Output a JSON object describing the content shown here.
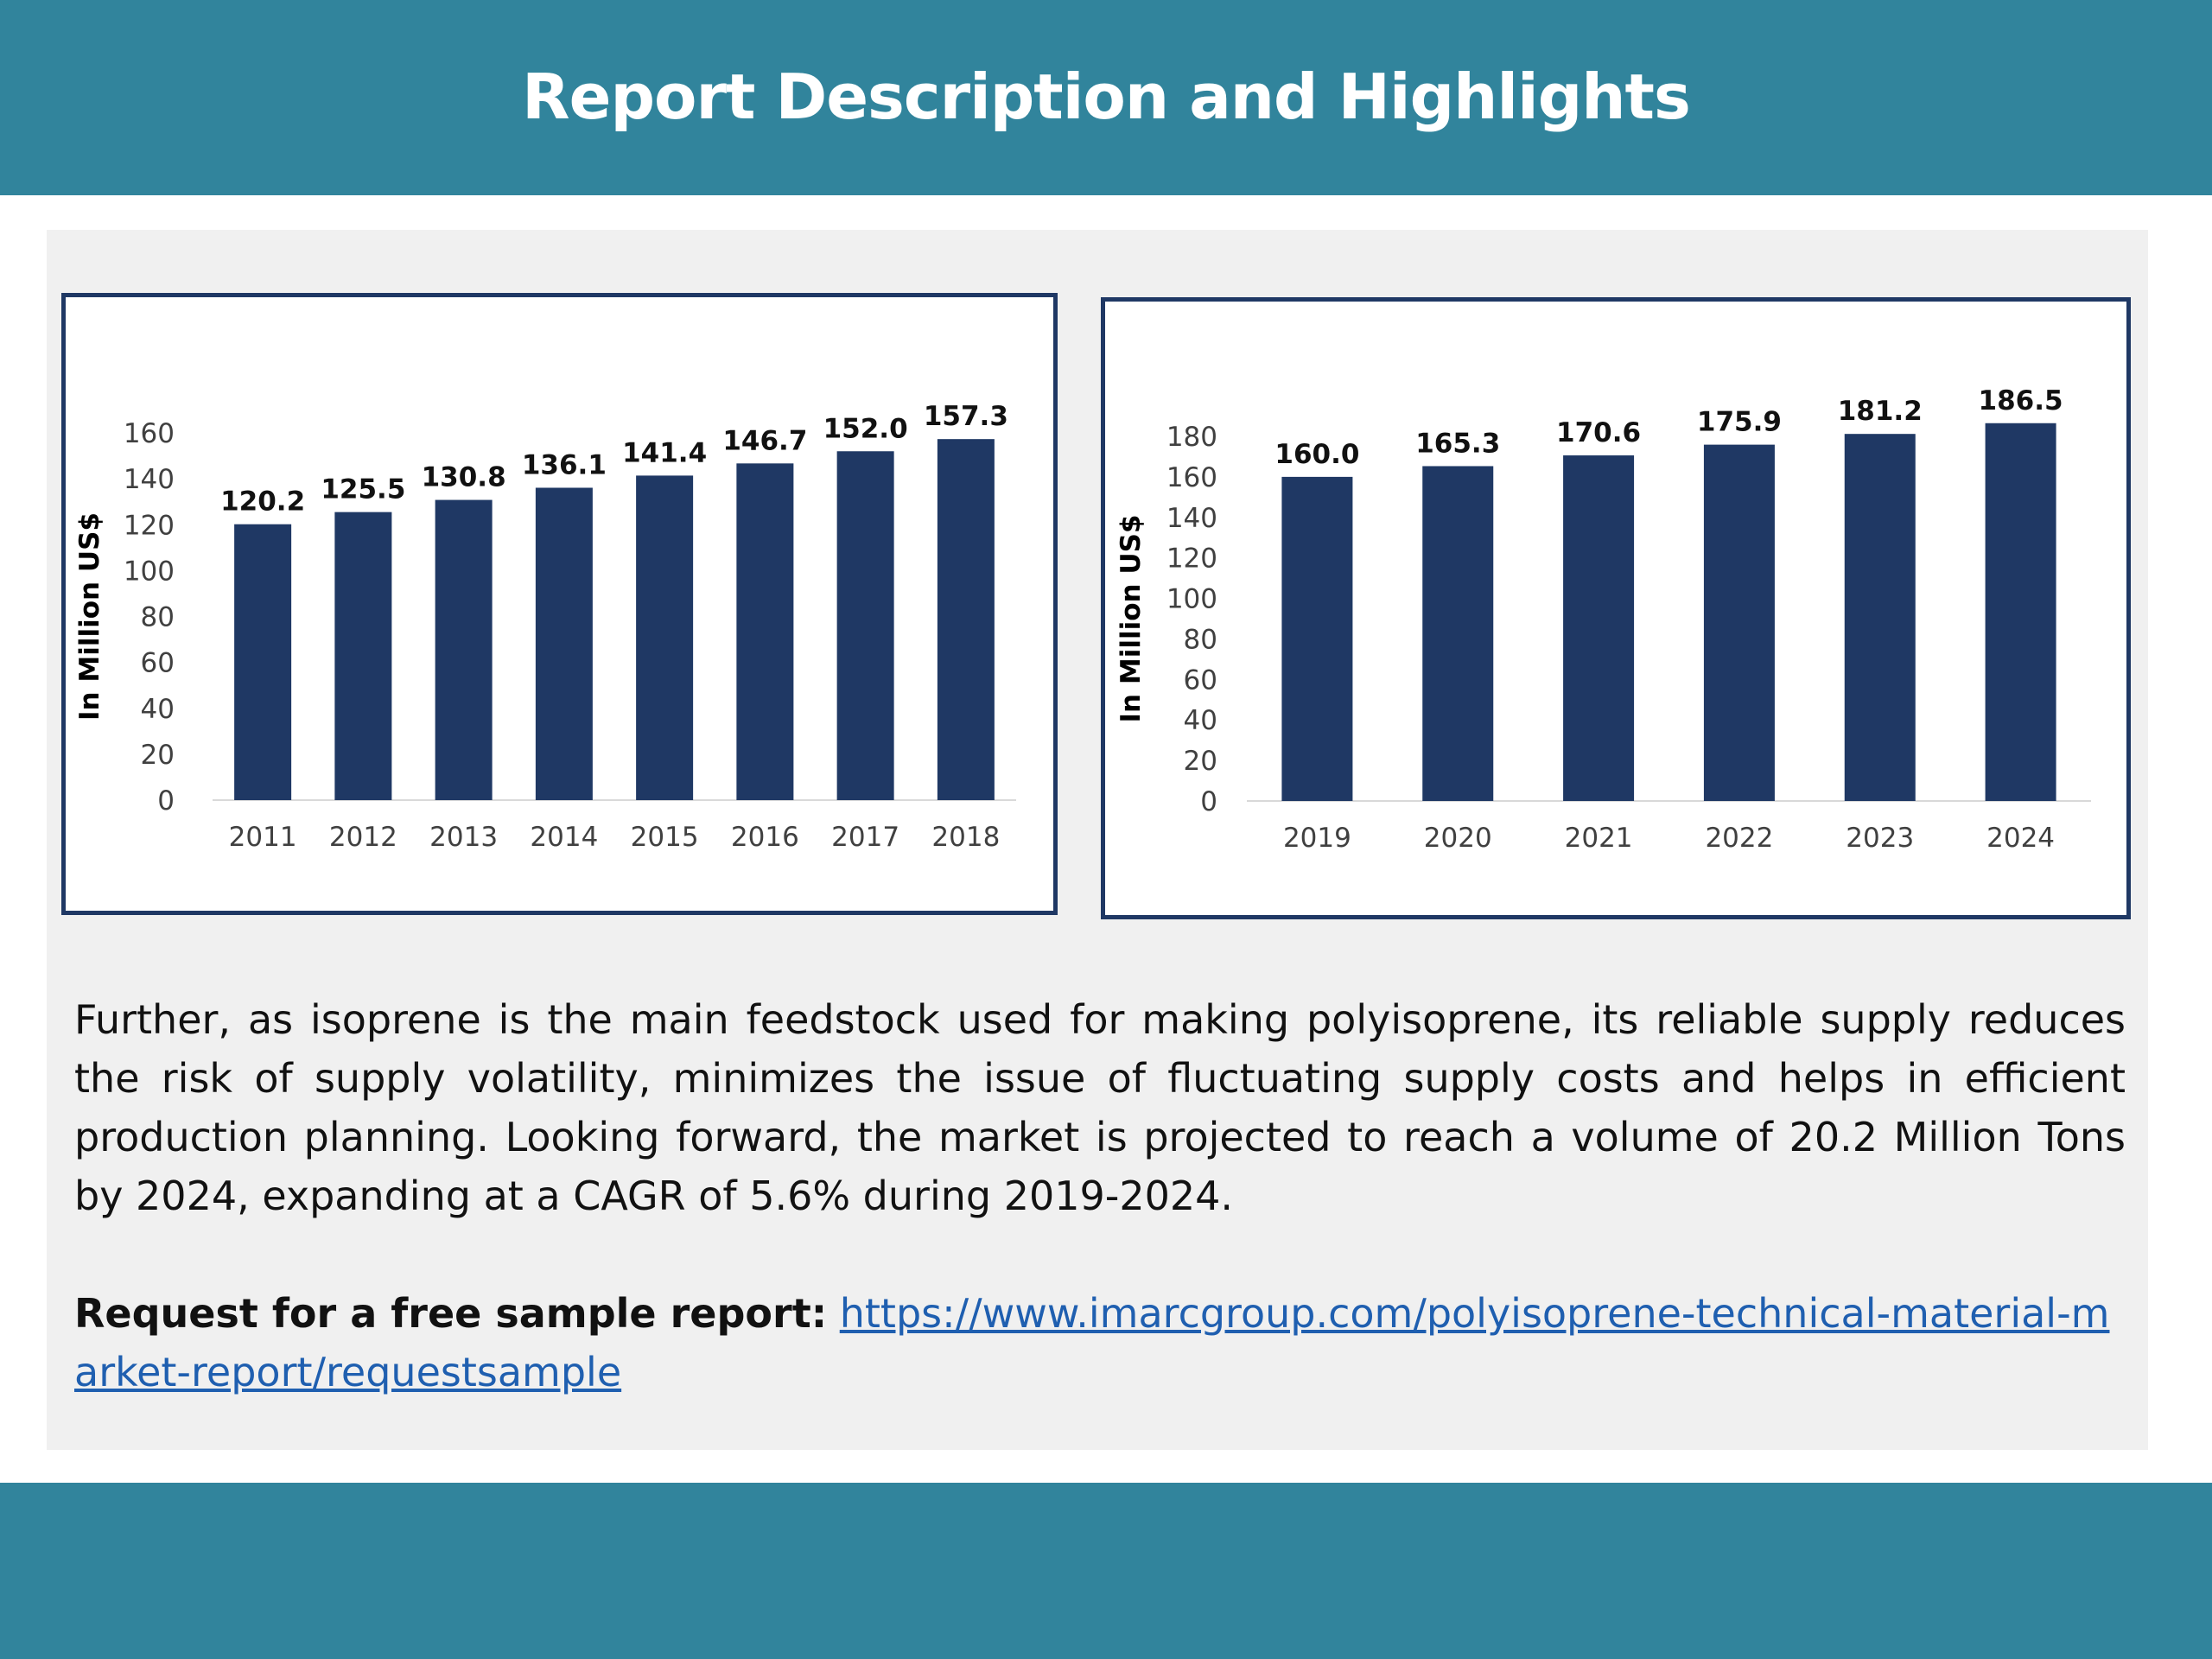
{
  "header": {
    "title": "Report Description and Highlights"
  },
  "colors": {
    "band": "#31849c",
    "panel": "#f0f0f0",
    "bar": "#1f3864",
    "link": "#1f5fb0"
  },
  "chart_data": [
    {
      "type": "bar",
      "title": "",
      "xlabel": "",
      "ylabel": "In Million US$",
      "categories": [
        "2011",
        "2012",
        "2013",
        "2014",
        "2015",
        "2016",
        "2017",
        "2018"
      ],
      "values": [
        120.2,
        125.5,
        130.8,
        136.1,
        141.4,
        146.7,
        152.0,
        157.3
      ],
      "value_labels": [
        "120.2",
        "125.5",
        "130.8",
        "136.1",
        "141.4",
        "146.7",
        "152.0",
        "157.3"
      ],
      "ylim": [
        0,
        160
      ],
      "yticks": [
        0,
        20,
        40,
        60,
        80,
        100,
        120,
        140,
        160
      ],
      "grid": false,
      "legend": "none"
    },
    {
      "type": "bar",
      "title": "",
      "xlabel": "",
      "ylabel": "In Million US$",
      "categories": [
        "2019",
        "2020",
        "2021",
        "2022",
        "2023",
        "2024"
      ],
      "values": [
        160.0,
        165.3,
        170.6,
        175.9,
        181.2,
        186.5
      ],
      "value_labels": [
        "160.0",
        "165.3",
        "170.6",
        "175.9",
        "181.2",
        "186.5"
      ],
      "ylim": [
        0,
        180
      ],
      "yticks": [
        0,
        20,
        40,
        60,
        80,
        100,
        120,
        140,
        160,
        180
      ],
      "grid": false,
      "legend": "none"
    }
  ],
  "body": {
    "paragraph": "Further, as isoprene is the main feedstock used for making polyisoprene, its reliable supply reduces the risk of supply volatility, minimizes the issue of fluctuating supply costs and helps in efficient production planning. Looking forward, the market is projected to reach a volume of 20.2 Million Tons by 2024, expanding at a CAGR of 5.6% during 2019-2024.",
    "request_label": "Request for a free sample report:",
    "request_link": "https://www.imarcgroup.com/polyisoprene-technical-material-market-report/requestsample"
  }
}
